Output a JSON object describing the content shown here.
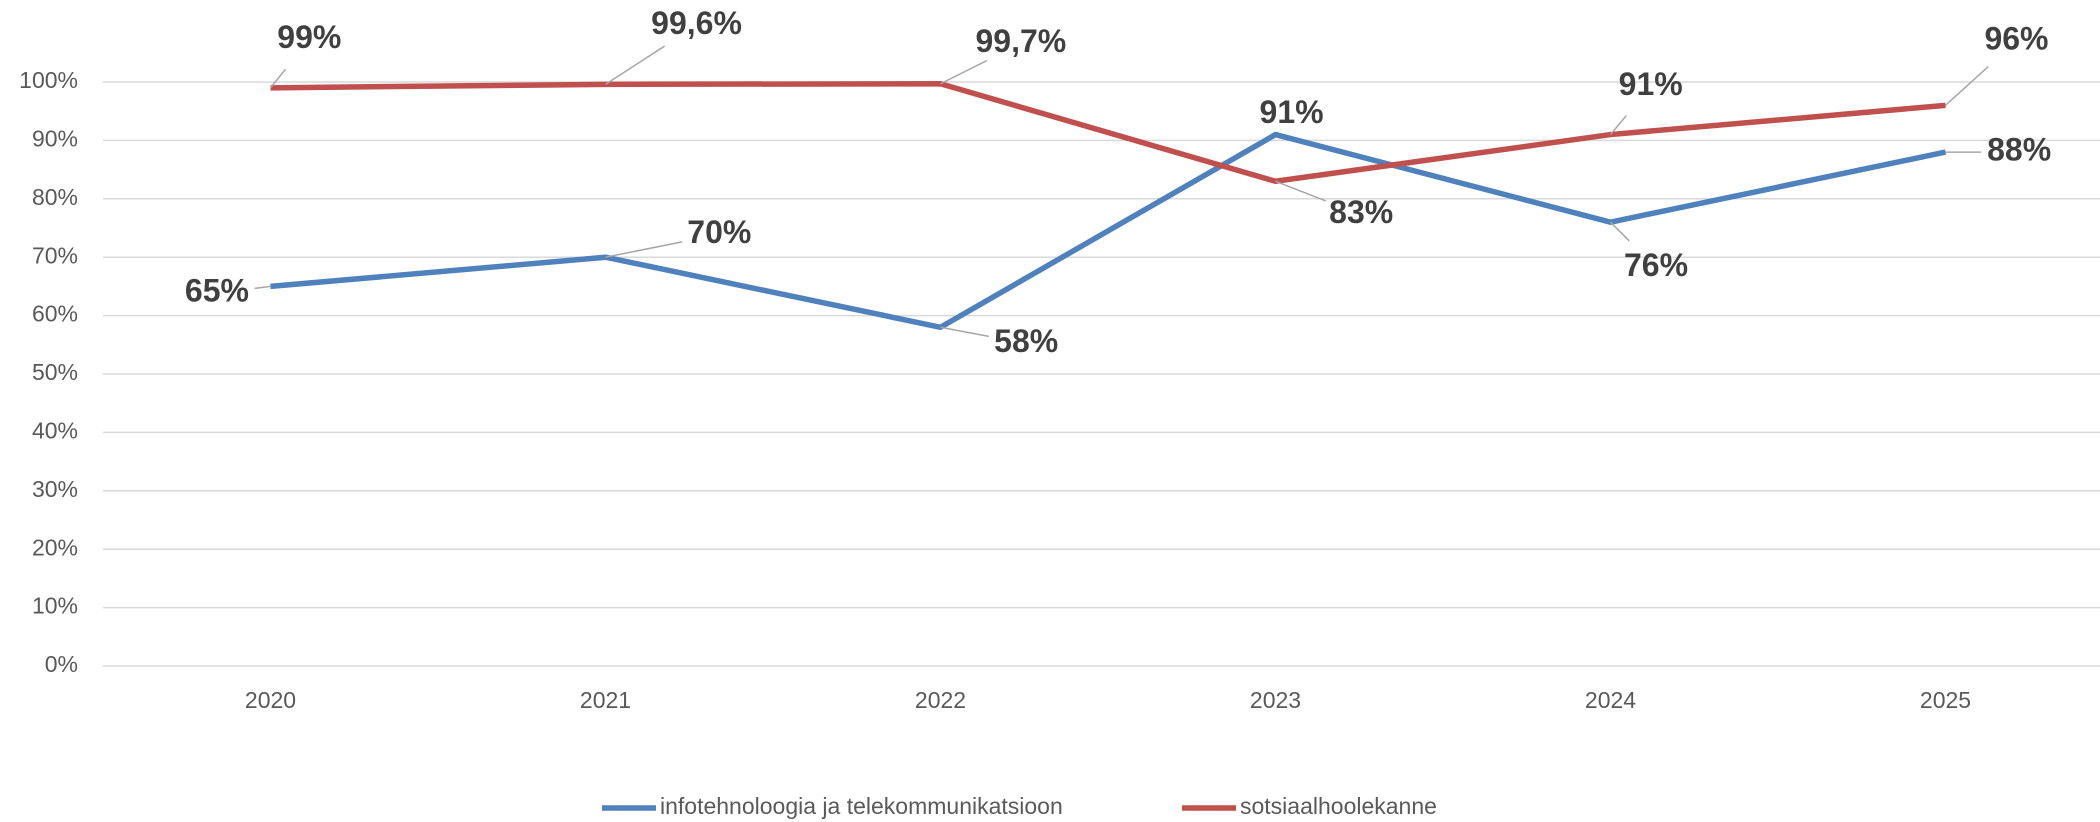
{
  "chart_data": {
    "type": "line",
    "categories": [
      "2020",
      "2021",
      "2022",
      "2023",
      "2024",
      "2025"
    ],
    "series": [
      {
        "name": "infotehnoloogia ja telekommunikatsioon",
        "color": "#4f81bd",
        "values": [
          65,
          70,
          58,
          91,
          76,
          88
        ],
        "value_labels": [
          "65%",
          "70%",
          "58%",
          "91%",
          "76%",
          "88%"
        ]
      },
      {
        "name": "sotsiaalhoolekanne",
        "color": "#c0504d",
        "values": [
          99,
          99.6,
          99.7,
          83,
          91,
          96
        ],
        "value_labels": [
          "99%",
          "99,6%",
          "99,7%",
          "83%",
          "91%",
          "96%"
        ]
      }
    ],
    "ylim": [
      0,
      100
    ],
    "yticks": [
      {
        "value": 0,
        "label": "0%"
      },
      {
        "value": 10,
        "label": "10%"
      },
      {
        "value": 20,
        "label": "20%"
      },
      {
        "value": 30,
        "label": "30%"
      },
      {
        "value": 40,
        "label": "40%"
      },
      {
        "value": 50,
        "label": "50%"
      },
      {
        "value": 60,
        "label": "60%"
      },
      {
        "value": 70,
        "label": "70%"
      },
      {
        "value": 80,
        "label": "80%"
      },
      {
        "value": 90,
        "label": "90%"
      },
      {
        "value": 100,
        "label": "100%"
      }
    ],
    "grid": true,
    "legend": "bottom"
  }
}
